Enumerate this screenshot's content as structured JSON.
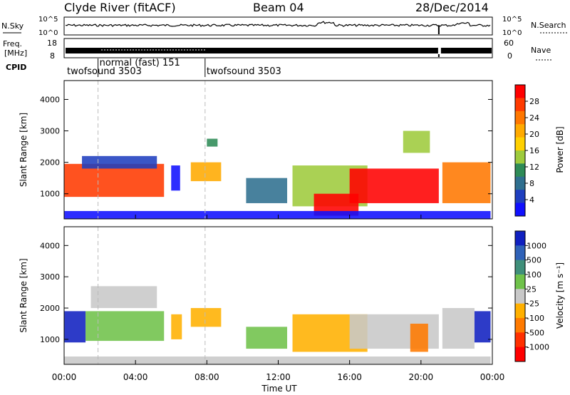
{
  "header": {
    "station": "Clyde River (fitACF)",
    "beam": "Beam 04",
    "date": "28/Dec/2014"
  },
  "top_panels": {
    "nsky_label": "N.Sky",
    "nsky_ticks": [
      "10^5",
      "10^0"
    ],
    "nsearch_label": "N.Search",
    "nsearch_ticks": [
      "10^5",
      "10^0"
    ],
    "freq_label_line1": "Freq.",
    "freq_label_line2": "[MHz]",
    "freq_ticks": [
      "18",
      "8"
    ],
    "nave_label": "Nave",
    "nave_ticks": [
      "60",
      "0"
    ],
    "cpid_label": "CPID",
    "cpid_segments": [
      {
        "label": "twofsound 3503",
        "start_hour": 0,
        "end_hour": 1.9
      },
      {
        "label": "normal (fast) 151",
        "start_hour": 1.9,
        "end_hour": 7.9
      },
      {
        "label": "twofsound 3503",
        "start_hour": 7.9,
        "end_hour": 24
      }
    ]
  },
  "x_axis": {
    "label": "Time UT",
    "ticks": [
      "00:00",
      "04:00",
      "08:00",
      "12:00",
      "16:00",
      "20:00",
      "00:00"
    ],
    "tick_hours": [
      0,
      4,
      8,
      12,
      16,
      20,
      24
    ],
    "range_hours": [
      0,
      24
    ]
  },
  "chart_data": [
    {
      "type": "heatmap",
      "parameter": "Power",
      "colorbar_label": "Power [dB]",
      "colorbar_ticks": [
        "28",
        "24",
        "20",
        "16",
        "12",
        "8",
        "4"
      ],
      "colorbar_values": [
        28,
        24,
        20,
        16,
        12,
        8,
        4
      ],
      "colorbar_colors": [
        "#ff0000",
        "#ff3a00",
        "#ff7700",
        "#ffaa00",
        "#ffd000",
        "#9ecb3c",
        "#2e8b57",
        "#2f6f8f",
        "#1f3fbf",
        "#1010ff"
      ],
      "ylabel": "Slant Range [km]",
      "yticks": [
        1000,
        2000,
        3000,
        4000
      ],
      "ylim": [
        200,
        4600
      ],
      "xlim_hours": [
        0,
        24
      ],
      "blocks": [
        {
          "t0": 0.0,
          "t1": 5.6,
          "r0": 900,
          "r1": 1950,
          "value": 24
        },
        {
          "t0": 1.0,
          "t1": 5.2,
          "r0": 1800,
          "r1": 2200,
          "value": 8
        },
        {
          "t0": 6.0,
          "t1": 6.5,
          "r0": 1100,
          "r1": 1900,
          "value": 6
        },
        {
          "t0": 7.1,
          "t1": 8.8,
          "r0": 1400,
          "r1": 2000,
          "value": 20
        },
        {
          "t0": 8.0,
          "t1": 8.6,
          "r0": 2500,
          "r1": 2750,
          "value": 12
        },
        {
          "t0": 10.2,
          "t1": 12.5,
          "r0": 700,
          "r1": 1500,
          "value": 10
        },
        {
          "t0": 12.8,
          "t1": 17.0,
          "r0": 600,
          "r1": 1900,
          "value": 14
        },
        {
          "t0": 14.0,
          "t1": 16.5,
          "r0": 300,
          "r1": 1000,
          "value": 26
        },
        {
          "t0": 16.0,
          "t1": 21.0,
          "r0": 700,
          "r1": 1800,
          "value": 26
        },
        {
          "t0": 19.0,
          "t1": 20.5,
          "r0": 2300,
          "r1": 3000,
          "value": 16
        },
        {
          "t0": 21.2,
          "t1": 23.9,
          "r0": 700,
          "r1": 2000,
          "value": 22
        },
        {
          "t0": 0.0,
          "t1": 23.9,
          "r0": 200,
          "r1": 450,
          "value": 6
        }
      ]
    },
    {
      "type": "heatmap",
      "parameter": "Velocity",
      "colorbar_label": "Velocity [m s⁻¹]",
      "colorbar_ticks": [
        "1000",
        "500",
        "100",
        "25",
        "-25",
        "-100",
        "-500",
        "-1000"
      ],
      "colorbar_values": [
        1000,
        500,
        100,
        25,
        -25,
        -100,
        -500,
        -1000
      ],
      "colorbar_colors": [
        "#1020c0",
        "#2f62b8",
        "#3f8f7a",
        "#6fc24a",
        "#c8c8c8",
        "#ffb000",
        "#ff7a00",
        "#ff3000",
        "#ff0000"
      ],
      "ylabel": "Slant Range [km]",
      "yticks": [
        1000,
        2000,
        3000,
        4000
      ],
      "ylim": [
        200,
        4600
      ],
      "xlim_hours": [
        0,
        24
      ],
      "blocks": [
        {
          "t0": 0.0,
          "t1": 1.2,
          "r0": 900,
          "r1": 1900,
          "value": 900
        },
        {
          "t0": 1.2,
          "t1": 5.6,
          "r0": 950,
          "r1": 1900,
          "value": 150
        },
        {
          "t0": 1.5,
          "t1": 5.2,
          "r0": 2000,
          "r1": 2700,
          "value": 0
        },
        {
          "t0": 6.0,
          "t1": 6.6,
          "r0": 1000,
          "r1": 1800,
          "value": -200
        },
        {
          "t0": 7.1,
          "t1": 8.8,
          "r0": 1400,
          "r1": 2000,
          "value": -300
        },
        {
          "t0": 10.2,
          "t1": 12.5,
          "r0": 700,
          "r1": 1400,
          "value": 300
        },
        {
          "t0": 12.8,
          "t1": 17.0,
          "r0": 600,
          "r1": 1800,
          "value": -150
        },
        {
          "t0": 16.0,
          "t1": 21.0,
          "r0": 700,
          "r1": 1800,
          "value": 60
        },
        {
          "t0": 19.4,
          "t1": 20.4,
          "r0": 600,
          "r1": 1500,
          "value": -400
        },
        {
          "t0": 21.2,
          "t1": 23.0,
          "r0": 700,
          "r1": 2000,
          "value": 50
        },
        {
          "t0": 23.0,
          "t1": 23.9,
          "r0": 900,
          "r1": 1900,
          "value": 800
        },
        {
          "t0": 0.0,
          "t1": 23.9,
          "r0": 200,
          "r1": 450,
          "value": 20
        }
      ]
    }
  ]
}
